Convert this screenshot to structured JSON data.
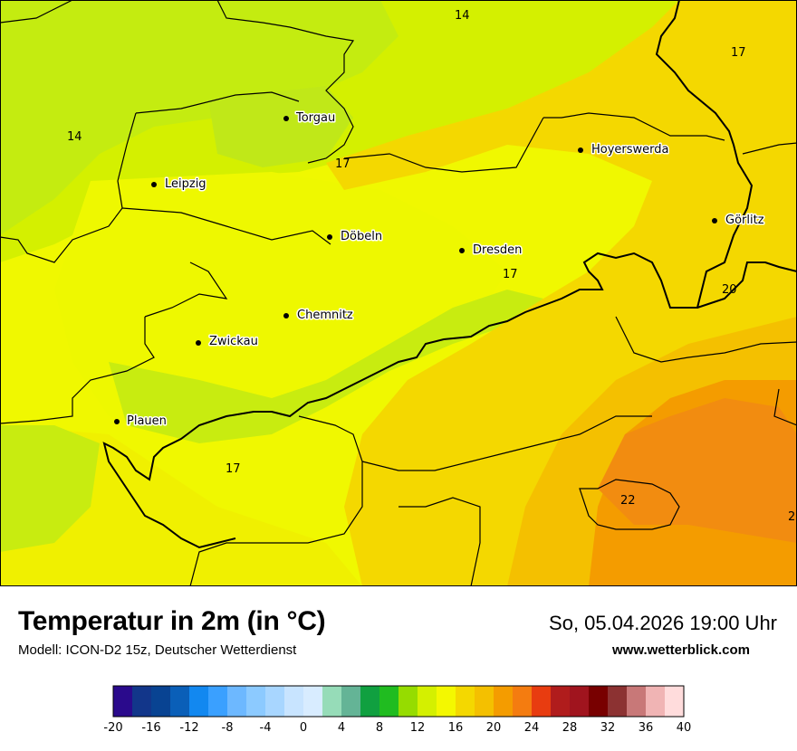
{
  "map": {
    "cities": [
      {
        "name": "Torgau"
      },
      {
        "name": "Leipzig"
      },
      {
        "name": "Hoyerswerda"
      },
      {
        "name": "Döbeln"
      },
      {
        "name": "Dresden"
      },
      {
        "name": "Görlitz"
      },
      {
        "name": "Chemnitz"
      },
      {
        "name": "Zwickau"
      },
      {
        "name": "Plauen"
      }
    ],
    "isolines": [
      "14",
      "17",
      "14",
      "17",
      "17",
      "20",
      "17",
      "22",
      "2"
    ]
  },
  "footer": {
    "title": "Temperatur in 2m (in °C)",
    "model": "Modell: ICON-D2 15z, Deutscher Wetterdienst",
    "datetime": "So, 05.04.2026 19:00 Uhr",
    "website": "www.wetterblick.com"
  },
  "legend": {
    "colors": [
      "#2a0a8c",
      "#12368a",
      "#084392",
      "#0a5fb8",
      "#1288f0",
      "#3aa0ff",
      "#6db8ff",
      "#8ccaff",
      "#a8d6ff",
      "#c8e4ff",
      "#d8ecff",
      "#96dcb8",
      "#64b496",
      "#10a040",
      "#20bc20",
      "#96dc00",
      "#d4f000",
      "#f4f800",
      "#f4d800",
      "#f4c000",
      "#f49c00",
      "#f47c10",
      "#e83c10",
      "#b01c1c",
      "#a0141e",
      "#780000",
      "#8c3232",
      "#c87878",
      "#f0b4b4",
      "#ffdcdc"
    ],
    "ticks": [
      "-20",
      "-16",
      "-12",
      "-8",
      "-4",
      "0",
      "4",
      "8",
      "12",
      "16",
      "20",
      "24",
      "28",
      "32",
      "36",
      "40"
    ]
  }
}
